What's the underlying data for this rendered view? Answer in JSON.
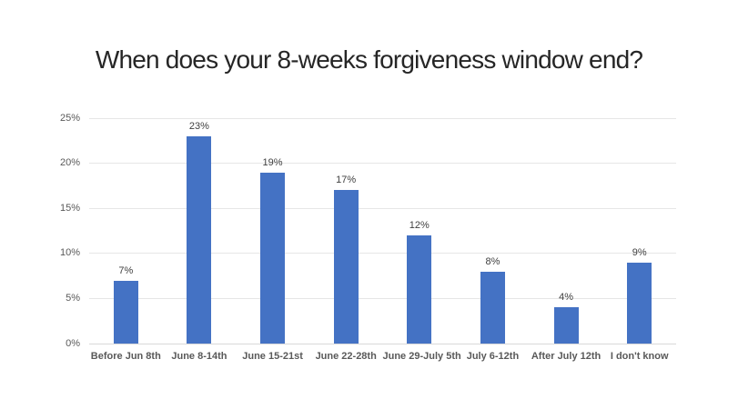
{
  "slide": {
    "background_color": "#ffffff"
  },
  "title": "When does your 8-weeks forgiveness window end?",
  "chart_data": {
    "type": "bar",
    "title": "When does your 8-weeks forgiveness window end?",
    "categories": [
      "Before Jun 8th",
      "June 8-14th",
      "June 15-21st",
      "June 22-28th",
      "June 29-July 5th",
      "July 6-12th",
      "After July 12th",
      "I don't know"
    ],
    "values": [
      7,
      23,
      19,
      17,
      12,
      8,
      4,
      9
    ],
    "data_labels": [
      "7%",
      "23%",
      "19%",
      "17%",
      "12%",
      "8%",
      "4%",
      "9%"
    ],
    "xlabel": "",
    "ylabel": "",
    "ylim": [
      0,
      25
    ],
    "ytick_interval": 5,
    "ytick_labels": [
      "0%",
      "5%",
      "10%",
      "15%",
      "20%",
      "25%"
    ],
    "grid": true,
    "legend": false,
    "bar_color": "#4472C4",
    "gridline_color": "#E6E6E6",
    "axis_line_color": "#D9D9D9",
    "tick_label_color": "#595959",
    "data_label_color": "#404040",
    "title_color": "#262626"
  }
}
